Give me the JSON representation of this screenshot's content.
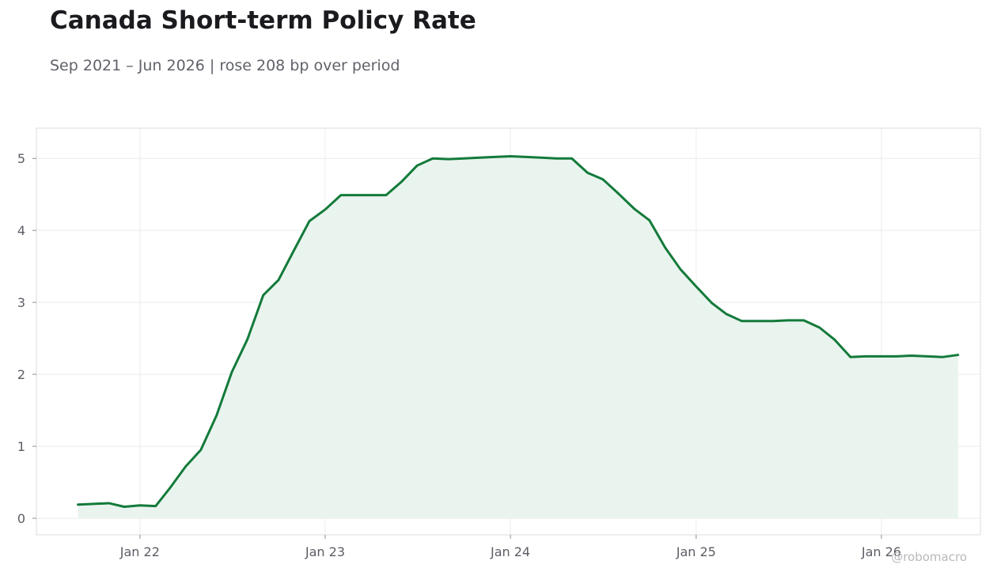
{
  "title": "Canada Short-term Policy Rate",
  "subtitle": "Sep 2021 – Jun 2026 | rose 208 bp over period",
  "watermark": "@robomacro",
  "colors": {
    "line": "#137a3a",
    "fill": "#e9f4ee",
    "grid": "#ececec",
    "frame": "#dedede"
  },
  "chart_data": {
    "type": "area",
    "title": "Canada Short-term Policy Rate",
    "xlabel": "",
    "ylabel": "",
    "grid": true,
    "xlim": [
      "2021-06-11",
      "2026-07-15"
    ],
    "ylim": [
      -0.23,
      5.42
    ],
    "y_ticks": [
      0,
      1,
      2,
      3,
      4,
      5
    ],
    "x_ticks": [
      {
        "date": "2022-01-01",
        "label": "Jan 22"
      },
      {
        "date": "2023-01-01",
        "label": "Jan 23"
      },
      {
        "date": "2024-01-01",
        "label": "Jan 24"
      },
      {
        "date": "2025-01-01",
        "label": "Jan 25"
      },
      {
        "date": "2026-01-01",
        "label": "Jan 26"
      }
    ],
    "series": [
      {
        "points": [
          [
            "2021-09-01",
            0.19
          ],
          [
            "2021-10-01",
            0.2
          ],
          [
            "2021-11-01",
            0.21
          ],
          [
            "2021-12-01",
            0.16
          ],
          [
            "2022-01-01",
            0.18
          ],
          [
            "2022-02-01",
            0.17
          ],
          [
            "2022-03-01",
            0.42
          ],
          [
            "2022-04-01",
            0.72
          ],
          [
            "2022-05-01",
            0.95
          ],
          [
            "2022-06-01",
            1.43
          ],
          [
            "2022-07-01",
            2.03
          ],
          [
            "2022-08-01",
            2.49
          ],
          [
            "2022-09-01",
            3.1
          ],
          [
            "2022-10-01",
            3.31
          ],
          [
            "2022-11-01",
            3.73
          ],
          [
            "2022-12-01",
            4.13
          ],
          [
            "2023-01-01",
            4.29
          ],
          [
            "2023-02-01",
            4.49
          ],
          [
            "2023-03-01",
            4.49
          ],
          [
            "2023-04-01",
            4.49
          ],
          [
            "2023-05-01",
            4.49
          ],
          [
            "2023-06-01",
            4.68
          ],
          [
            "2023-07-01",
            4.9
          ],
          [
            "2023-08-01",
            5.0
          ],
          [
            "2023-09-01",
            4.99
          ],
          [
            "2023-10-01",
            5.0
          ],
          [
            "2023-11-01",
            5.01
          ],
          [
            "2023-12-01",
            5.02
          ],
          [
            "2024-01-01",
            5.03
          ],
          [
            "2024-02-01",
            5.02
          ],
          [
            "2024-03-01",
            5.01
          ],
          [
            "2024-04-01",
            5.0
          ],
          [
            "2024-05-01",
            5.0
          ],
          [
            "2024-06-01",
            4.8
          ],
          [
            "2024-07-01",
            4.71
          ],
          [
            "2024-08-01",
            4.51
          ],
          [
            "2024-09-01",
            4.3
          ],
          [
            "2024-10-01",
            4.14
          ],
          [
            "2024-11-01",
            3.76
          ],
          [
            "2024-12-01",
            3.46
          ],
          [
            "2025-01-01",
            3.22
          ],
          [
            "2025-02-01",
            2.99
          ],
          [
            "2025-03-01",
            2.84
          ],
          [
            "2025-04-01",
            2.74
          ],
          [
            "2025-05-01",
            2.74
          ],
          [
            "2025-06-01",
            2.74
          ],
          [
            "2025-07-01",
            2.75
          ],
          [
            "2025-08-01",
            2.75
          ],
          [
            "2025-09-01",
            2.65
          ],
          [
            "2025-10-01",
            2.48
          ],
          [
            "2025-11-01",
            2.24
          ],
          [
            "2025-12-01",
            2.25
          ],
          [
            "2026-01-01",
            2.25
          ],
          [
            "2026-02-01",
            2.25
          ],
          [
            "2026-03-01",
            2.26
          ],
          [
            "2026-04-01",
            2.25
          ],
          [
            "2026-05-01",
            2.24
          ],
          [
            "2026-06-01",
            2.27
          ]
        ]
      }
    ]
  }
}
